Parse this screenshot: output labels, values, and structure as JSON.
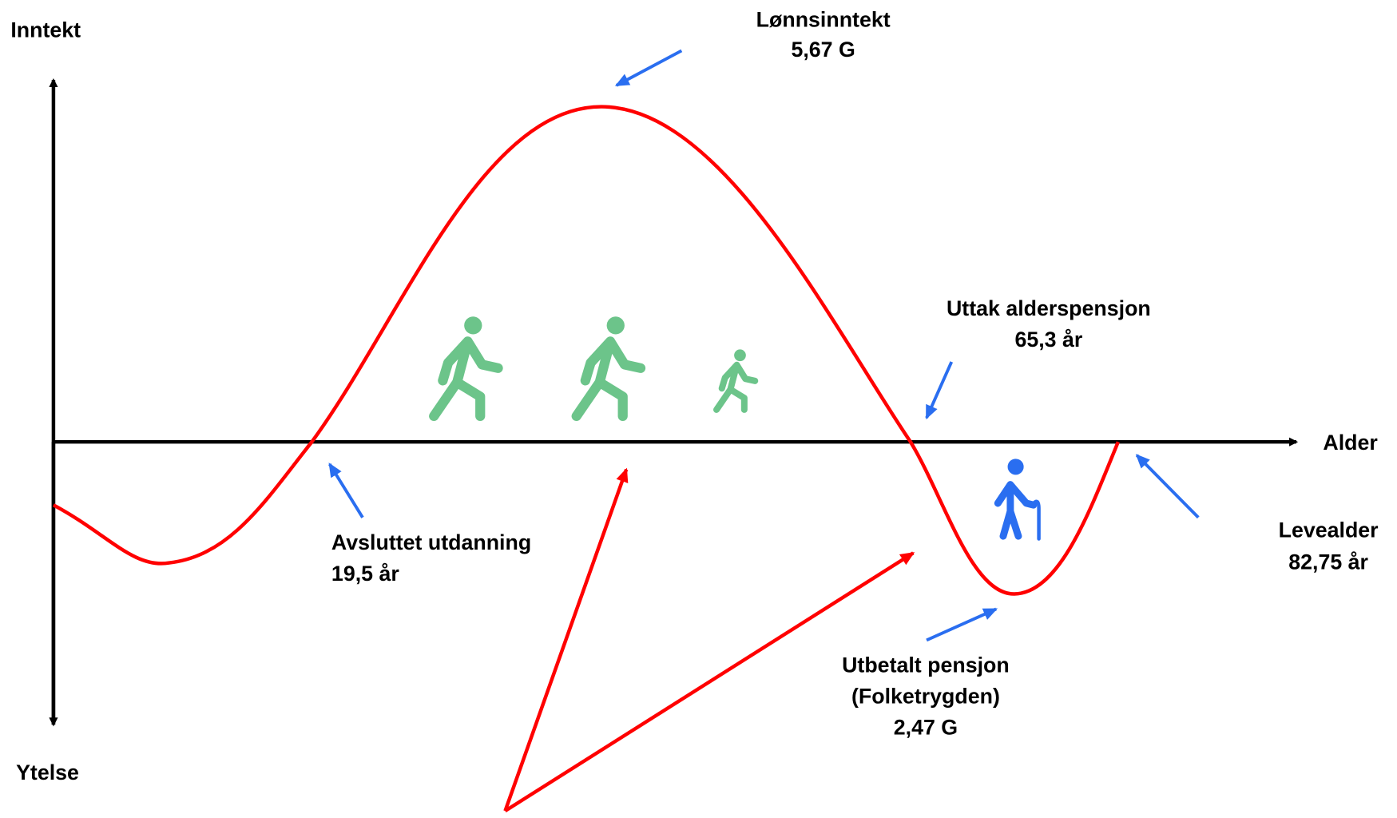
{
  "axes": {
    "y_top": "Inntekt",
    "y_bottom": "Ytelse",
    "x": "Alder"
  },
  "annotations": [
    {
      "lines": [
        "Lønnsinntekt",
        "5,67 G"
      ]
    },
    {
      "lines": [
        "Uttak alderspensjon",
        "65,3 år"
      ]
    },
    {
      "lines": [
        "Avsluttet utdanning",
        "19,5 år"
      ]
    },
    {
      "lines": [
        "Levealder",
        "82,75 år"
      ]
    },
    {
      "lines": [
        "Utbetalt pensjon",
        "(Folketrygden)",
        "2,47 G"
      ]
    }
  ]
}
